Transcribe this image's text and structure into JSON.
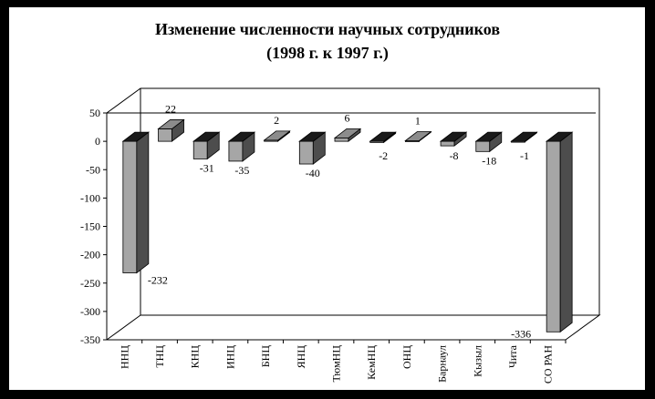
{
  "chart_data": {
    "type": "bar",
    "title_line1": "Изменение численности научных сотрудников",
    "title_line2": "(1998 г. к 1997 г.)",
    "categories": [
      "ННЦ",
      "ТНЦ",
      "КНЦ",
      "ИНЦ",
      "БНЦ",
      "ЯНЦ",
      "ТюмНЦ",
      "КемНЦ",
      "ОНЦ",
      "Барнаул",
      "Кызыл",
      "Чита",
      "СО РАН"
    ],
    "values": [
      -232,
      22,
      -31,
      -35,
      2,
      -40,
      6,
      -2,
      1,
      -8,
      -18,
      -1,
      -336
    ],
    "data_labels": [
      "-232",
      "22",
      "-31",
      "-35",
      "2",
      "-40",
      "6",
      "-2",
      "1",
      "-8",
      "-18",
      "-1",
      "-336"
    ],
    "ylim": [
      -350,
      50
    ],
    "yticks": [
      50,
      0,
      -50,
      -100,
      -150,
      -200,
      -250,
      -300,
      -350
    ],
    "ytick_labels": [
      "50",
      "0",
      "-50",
      "-100",
      "-150",
      "-200",
      "-250",
      "-300",
      "-350"
    ],
    "xlabel": "",
    "ylabel": "",
    "legend": "none",
    "three_d": true,
    "colors": {
      "positive_front": "#a6a6a6",
      "negative_front": "#a6a6a6",
      "top_dark": "#1a1a1a",
      "top_light": "#8c8c8c",
      "side": "#4d4d4d"
    }
  }
}
